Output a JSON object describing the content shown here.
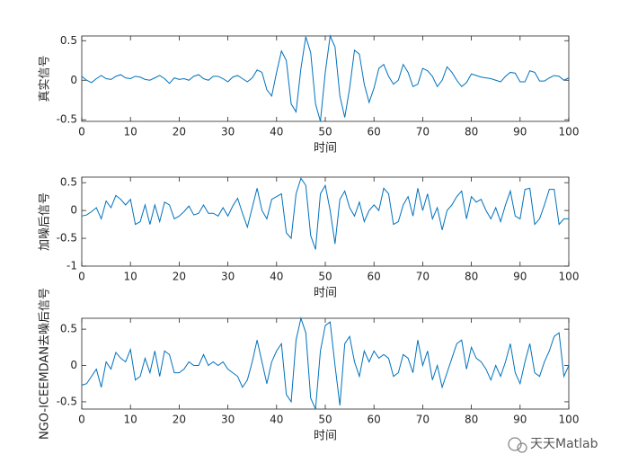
{
  "chart_data": [
    {
      "type": "line",
      "xlabel": "时间",
      "ylabel": "真实信号",
      "color": "#0072bd",
      "x": [
        0,
        1,
        2,
        3,
        4,
        5,
        6,
        7,
        8,
        9,
        10,
        11,
        12,
        13,
        14,
        15,
        16,
        17,
        18,
        19,
        20,
        21,
        22,
        23,
        24,
        25,
        26,
        27,
        28,
        29,
        30,
        31,
        32,
        33,
        34,
        35,
        36,
        37,
        38,
        39,
        40,
        41,
        42,
        43,
        44,
        45,
        46,
        47,
        48,
        49,
        50,
        51,
        52,
        53,
        54,
        55,
        56,
        57,
        58,
        59,
        60,
        61,
        62,
        63,
        64,
        65,
        66,
        67,
        68,
        69,
        70,
        71,
        72,
        73,
        74,
        75,
        76,
        77,
        78,
        79,
        80,
        81,
        82,
        83,
        84,
        85,
        86,
        87,
        88,
        89,
        90,
        91,
        92,
        93,
        94,
        95,
        96,
        97,
        98,
        99,
        100
      ],
      "values": [
        0.05,
        0,
        -0.03,
        0.02,
        0.06,
        0.02,
        0.01,
        0.05,
        0.07,
        0.03,
        0.02,
        0.05,
        0.04,
        0.01,
        0,
        0.03,
        0.06,
        0.02,
        -0.04,
        0.03,
        0.01,
        0.02,
        0,
        0.05,
        0.07,
        0.02,
        0,
        0.05,
        0.05,
        0.02,
        -0.02,
        0.04,
        0.06,
        0.02,
        -0.02,
        0.03,
        0.13,
        0.1,
        -0.12,
        -0.2,
        0.1,
        0.37,
        0.25,
        -0.3,
        -0.4,
        0.15,
        0.55,
        0.35,
        -0.3,
        -0.52,
        0.1,
        0.56,
        0.42,
        -0.2,
        -0.47,
        -0.1,
        0.38,
        0.33,
        -0.05,
        -0.28,
        -0.1,
        0.15,
        0.2,
        0.05,
        -0.05,
        0,
        0.2,
        0.1,
        -0.08,
        -0.05,
        0.15,
        0.12,
        0.05,
        -0.08,
        0,
        0.17,
        0.1,
        0,
        -0.08,
        -0.03,
        0.08,
        0.06,
        0.04,
        0.03,
        0.02,
        0,
        -0.02,
        0.05,
        0.1,
        0.09,
        -0.02,
        -0.02,
        0.12,
        0.1,
        -0.01,
        -0.01,
        0.03,
        0.06,
        0.05,
        0,
        0.03
      ],
      "xlim": [
        0,
        100
      ],
      "xticks": [
        0,
        10,
        20,
        30,
        40,
        50,
        60,
        70,
        80,
        90,
        100
      ],
      "ylim": [
        -0.52,
        0.56
      ],
      "yticks": [
        -0.5,
        0,
        0.5
      ]
    },
    {
      "type": "line",
      "xlabel": "时间",
      "ylabel": "加噪后信号",
      "color": "#0072bd",
      "x": [
        0,
        1,
        2,
        3,
        4,
        5,
        6,
        7,
        8,
        9,
        10,
        11,
        12,
        13,
        14,
        15,
        16,
        17,
        18,
        19,
        20,
        21,
        22,
        23,
        24,
        25,
        26,
        27,
        28,
        29,
        30,
        31,
        32,
        33,
        34,
        35,
        36,
        37,
        38,
        39,
        40,
        41,
        42,
        43,
        44,
        45,
        46,
        47,
        48,
        49,
        50,
        51,
        52,
        53,
        54,
        55,
        56,
        57,
        58,
        59,
        60,
        61,
        62,
        63,
        64,
        65,
        66,
        67,
        68,
        69,
        70,
        71,
        72,
        73,
        74,
        75,
        76,
        77,
        78,
        79,
        80,
        81,
        82,
        83,
        84,
        85,
        86,
        87,
        88,
        89,
        90,
        91,
        92,
        93,
        94,
        95,
        96,
        97,
        98,
        99,
        100
      ],
      "values": [
        -0.1,
        -0.08,
        -0.02,
        0.05,
        -0.15,
        0.17,
        0.05,
        0.27,
        0.2,
        0.1,
        0.2,
        -0.25,
        -0.2,
        0.1,
        -0.25,
        0.1,
        -0.2,
        0.15,
        0.1,
        -0.15,
        -0.1,
        -0.02,
        0.08,
        -0.08,
        -0.05,
        0.1,
        -0.05,
        -0.05,
        -0.1,
        0.05,
        -0.1,
        0.08,
        0.22,
        -0.05,
        -0.3,
        0.05,
        0.4,
        0,
        -0.15,
        0.2,
        0.25,
        0.3,
        -0.4,
        -0.5,
        0.3,
        0.58,
        0.45,
        -0.45,
        -0.7,
        0.3,
        0.45,
        0,
        -0.6,
        0.2,
        0.35,
        0.05,
        -0.1,
        0.15,
        -0.2,
        0,
        0.1,
        0,
        0.4,
        0.3,
        -0.25,
        -0.2,
        0.1,
        0.25,
        -0.1,
        0.4,
        0,
        0.3,
        -0.15,
        0.05,
        -0.35,
        0,
        0.1,
        0.25,
        0.35,
        -0.15,
        0.25,
        0.15,
        0.2,
        0,
        -0.15,
        0.05,
        -0.2,
        0.1,
        0.35,
        -0.1,
        -0.15,
        0.38,
        0.4,
        -0.25,
        -0.15,
        0.1,
        0.38,
        0.38,
        -0.25,
        -0.15,
        -0.15
      ],
      "xlim": [
        0,
        100
      ],
      "xticks": [
        0,
        10,
        20,
        30,
        40,
        50,
        60,
        70,
        80,
        90,
        100
      ],
      "ylim": [
        -1,
        0.6
      ],
      "yticks": [
        -1,
        -0.5,
        0,
        0.5
      ]
    },
    {
      "type": "line",
      "xlabel": "时间",
      "ylabel": "NGO-ICEEMDAN去噪后信号",
      "color": "#0072bd",
      "x": [
        0,
        1,
        2,
        3,
        4,
        5,
        6,
        7,
        8,
        9,
        10,
        11,
        12,
        13,
        14,
        15,
        16,
        17,
        18,
        19,
        20,
        21,
        22,
        23,
        24,
        25,
        26,
        27,
        28,
        29,
        30,
        31,
        32,
        33,
        34,
        35,
        36,
        37,
        38,
        39,
        40,
        41,
        42,
        43,
        44,
        45,
        46,
        47,
        48,
        49,
        50,
        51,
        52,
        53,
        54,
        55,
        56,
        57,
        58,
        59,
        60,
        61,
        62,
        63,
        64,
        65,
        66,
        67,
        68,
        69,
        70,
        71,
        72,
        73,
        74,
        75,
        76,
        77,
        78,
        79,
        80,
        81,
        82,
        83,
        84,
        85,
        86,
        87,
        88,
        89,
        90,
        91,
        92,
        93,
        94,
        95,
        96,
        97,
        98,
        99,
        100
      ],
      "values": [
        -0.27,
        -0.25,
        -0.15,
        -0.05,
        -0.3,
        0.05,
        -0.05,
        0.18,
        0.1,
        0.05,
        0.22,
        -0.2,
        -0.15,
        0.1,
        -0.1,
        0.2,
        -0.15,
        0.2,
        0.15,
        -0.1,
        -0.1,
        -0.05,
        0.05,
        0,
        0,
        0.15,
        0,
        0.05,
        0,
        0.05,
        -0.05,
        -0.1,
        -0.15,
        -0.3,
        -0.2,
        0.05,
        0.35,
        0.05,
        -0.25,
        0.05,
        0.2,
        0.3,
        -0.4,
        -0.5,
        0.35,
        0.65,
        0.45,
        -0.45,
        -0.6,
        0.2,
        0.55,
        0.6,
        0,
        -0.55,
        0.3,
        0.4,
        0.05,
        -0.15,
        0.2,
        0.05,
        0.2,
        0.1,
        0.15,
        0.1,
        -0.15,
        -0.1,
        0.15,
        0.1,
        -0.1,
        0.35,
        0,
        0.2,
        -0.2,
        0,
        -0.3,
        -0.1,
        0.1,
        0.3,
        0.35,
        -0.05,
        0.25,
        0.1,
        0.05,
        -0.05,
        -0.2,
        0,
        -0.15,
        0.05,
        0.3,
        -0.1,
        -0.25,
        0.05,
        0.3,
        -0.1,
        -0.15,
        0.05,
        0.2,
        0.4,
        0.45,
        -0.15,
        0
      ],
      "xlim": [
        0,
        100
      ],
      "xticks": [
        0,
        10,
        20,
        30,
        40,
        50,
        60,
        70,
        80,
        90,
        100
      ],
      "ylim": [
        -0.6,
        0.65
      ],
      "yticks": [
        -0.5,
        0,
        0.5
      ]
    }
  ],
  "watermark": "天天Matlab"
}
